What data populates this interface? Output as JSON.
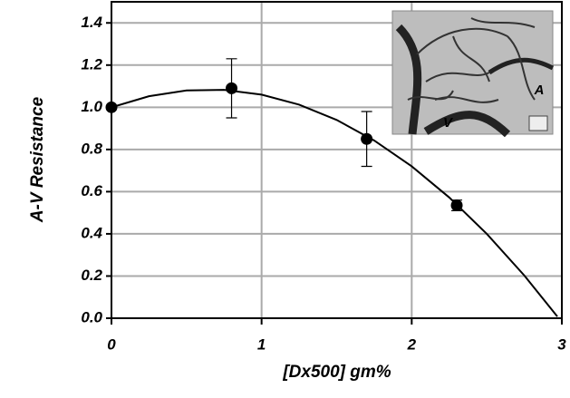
{
  "chart_data": {
    "type": "scatter",
    "x_label": "[Dx500] gm%",
    "y_label": "A-V Resistance",
    "x": [
      0,
      0.8,
      1.7,
      2.3
    ],
    "values": [
      1.0,
      1.09,
      0.85,
      0.535
    ],
    "errors": [
      null,
      0.14,
      0.13,
      0.025
    ],
    "color": "#000000",
    "fit": {
      "x": [
        0,
        0.25,
        0.5,
        0.75,
        1,
        1.25,
        1.5,
        1.75,
        2,
        2.25,
        2.5,
        2.75,
        2.97
      ],
      "values": [
        1,
        1.0525,
        1.08,
        1.0825,
        1.06,
        1.0125,
        0.94,
        0.8425,
        0.72,
        0.5725,
        0.4,
        0.2025,
        0.008
      ]
    },
    "xlim": [
      0,
      3
    ],
    "ylim": [
      0,
      1.5
    ],
    "xticks": [
      0,
      1,
      2,
      3
    ],
    "yticks": [
      {
        "value": 0,
        "label": "0.0"
      },
      0.2,
      0.4,
      0.6,
      0.8,
      {
        "value": 1.0,
        "label": "1.0"
      },
      1.2,
      1.4
    ],
    "grid": true,
    "inset_labels": [
      "A",
      "V"
    ]
  }
}
